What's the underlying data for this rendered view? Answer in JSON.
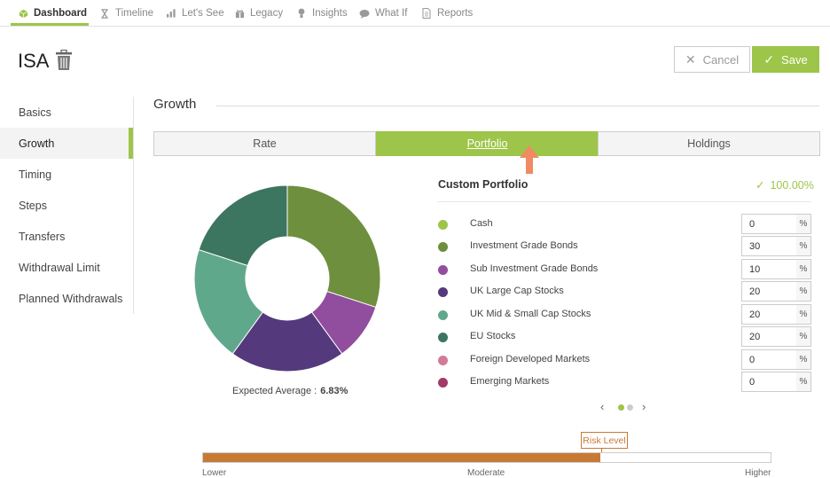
{
  "nav": {
    "items": [
      {
        "label": "Dashboard",
        "icon": "cube-icon",
        "active": true
      },
      {
        "label": "Timeline",
        "icon": "hourglass-icon",
        "active": false
      },
      {
        "label": "Let's See",
        "icon": "bar-chart-icon",
        "active": false
      },
      {
        "label": "Legacy",
        "icon": "gift-icon",
        "active": false
      },
      {
        "label": "Insights",
        "icon": "lightbulb-icon",
        "active": false
      },
      {
        "label": "What If",
        "icon": "chat-icon",
        "active": false
      },
      {
        "label": "Reports",
        "icon": "document-icon",
        "active": false
      }
    ],
    "accent_color": "#9dc54a"
  },
  "header": {
    "title": "ISA",
    "cancel_label": "Cancel",
    "save_label": "Save"
  },
  "sidebar": {
    "items": [
      {
        "label": "Basics",
        "active": false
      },
      {
        "label": "Growth",
        "active": true
      },
      {
        "label": "Timing",
        "active": false
      },
      {
        "label": "Steps",
        "active": false
      },
      {
        "label": "Transfers",
        "active": false
      },
      {
        "label": "Withdrawal Limit",
        "active": false
      },
      {
        "label": "Planned Withdrawals",
        "active": false
      }
    ]
  },
  "section": {
    "title": "Growth",
    "tabs": [
      {
        "label": "Rate",
        "active": false
      },
      {
        "label": "Portfolio",
        "active": true
      },
      {
        "label": "Holdings",
        "active": false
      }
    ]
  },
  "portfolio": {
    "title": "Custom Portfolio",
    "total": "100.00%",
    "expected_label": "Expected Average :",
    "expected_value": "6.83%",
    "percent_symbol": "%",
    "assets": [
      {
        "name": "Cash",
        "value": "0",
        "color": "#9dc54a"
      },
      {
        "name": "Investment Grade Bonds",
        "value": "30",
        "color": "#6e8f3e"
      },
      {
        "name": "Sub Investment Grade Bonds",
        "value": "10",
        "color": "#914d9e"
      },
      {
        "name": "UK Large Cap Stocks",
        "value": "20",
        "color": "#543a7c"
      },
      {
        "name": "UK Mid & Small Cap Stocks",
        "value": "20",
        "color": "#60a88c"
      },
      {
        "name": "EU Stocks",
        "value": "20",
        "color": "#3c7560"
      },
      {
        "name": "Foreign Developed Markets",
        "value": "0",
        "color": "#d37a97"
      },
      {
        "name": "Emerging Markets",
        "value": "0",
        "color": "#a23a6a"
      }
    ],
    "pager": {
      "pages": 2,
      "current": 1
    }
  },
  "risk": {
    "label": "Risk Level",
    "level": 0.7,
    "fill_color": "#c87a35",
    "scale": [
      "Lower",
      "Moderate",
      "Higher"
    ]
  },
  "chart_data": {
    "type": "pie",
    "donut": true,
    "categories": [
      "Investment Grade Bonds",
      "Sub Investment Grade Bonds",
      "UK Large Cap Stocks",
      "UK Mid & Small Cap Stocks",
      "EU Stocks"
    ],
    "values": [
      30,
      10,
      20,
      20,
      20
    ],
    "colors": [
      "#6e8f3e",
      "#914d9e",
      "#543a7c",
      "#60a88c",
      "#3c7560"
    ],
    "title": ""
  }
}
